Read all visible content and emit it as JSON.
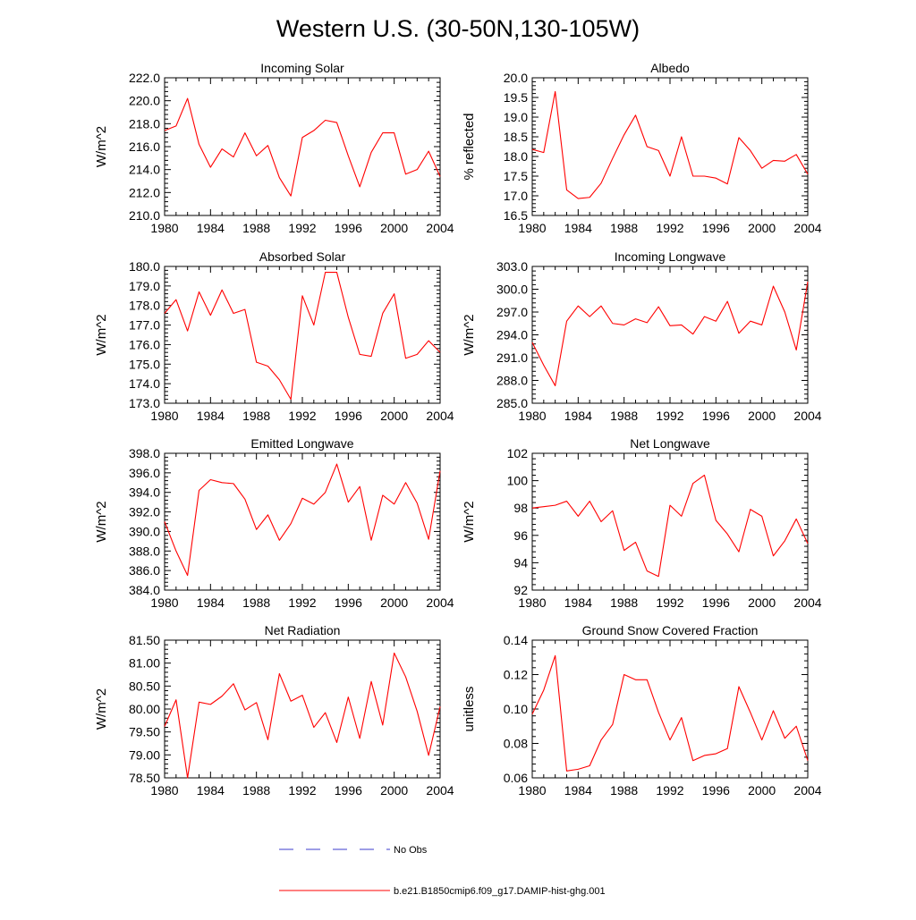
{
  "figure": {
    "title": "Western U.S. (30-50N,130-105W)"
  },
  "legend": [
    {
      "label": "No Obs",
      "color": "#3b3bcc",
      "dash": "dashed"
    },
    {
      "label": "b.e21.B1850cmip6.f09_g17.DAMIP-hist-ghg.001",
      "color": "#ff0000",
      "dash": "solid"
    }
  ],
  "chart_data": [
    {
      "type": "line",
      "title": "Incoming Solar",
      "ylabel": "W/m^2",
      "xlim": [
        1980,
        2004
      ],
      "ylim": [
        210.0,
        222.0
      ],
      "xticks": [
        1980,
        1984,
        1988,
        1992,
        1996,
        2000,
        2004
      ],
      "yticks": [
        210.0,
        212.0,
        214.0,
        216.0,
        218.0,
        220.0,
        222.0
      ],
      "ydecimals": 1,
      "x": [
        1980,
        1981,
        1982,
        1983,
        1984,
        1985,
        1986,
        1987,
        1988,
        1989,
        1990,
        1991,
        1992,
        1993,
        1994,
        1995,
        1996,
        1997,
        1998,
        1999,
        2000,
        2001,
        2002,
        2003,
        2004
      ],
      "series": [
        {
          "name": "b.e21.B1850cmip6.f09_g17.DAMIP-hist-ghg.001",
          "color": "#ff0000",
          "values": [
            217.4,
            217.8,
            220.2,
            216.2,
            214.2,
            215.8,
            215.1,
            217.2,
            215.2,
            216.1,
            213.3,
            211.7,
            216.8,
            217.4,
            218.3,
            218.1,
            215.2,
            212.5,
            215.5,
            217.2,
            217.2,
            213.6,
            214.0,
            215.6,
            213.4
          ]
        }
      ]
    },
    {
      "type": "line",
      "title": "Albedo",
      "ylabel": "% reflected",
      "xlim": [
        1980,
        2004
      ],
      "ylim": [
        16.5,
        20.0
      ],
      "xticks": [
        1980,
        1984,
        1988,
        1992,
        1996,
        2000,
        2004
      ],
      "yticks": [
        16.5,
        17.0,
        17.5,
        18.0,
        18.5,
        19.0,
        19.5,
        20.0
      ],
      "ydecimals": 1,
      "x": [
        1980,
        1981,
        1982,
        1983,
        1984,
        1985,
        1986,
        1987,
        1988,
        1989,
        1990,
        1991,
        1992,
        1993,
        1994,
        1995,
        1996,
        1997,
        1998,
        1999,
        2000,
        2001,
        2002,
        2003,
        2004
      ],
      "series": [
        {
          "name": "b.e21.B1850cmip6.f09_g17.DAMIP-hist-ghg.001",
          "color": "#ff0000",
          "values": [
            18.18,
            18.1,
            19.65,
            17.15,
            16.93,
            16.96,
            17.32,
            17.95,
            18.55,
            19.05,
            18.25,
            18.15,
            17.5,
            18.5,
            17.5,
            17.5,
            17.45,
            17.3,
            18.48,
            18.15,
            17.7,
            17.9,
            17.88,
            18.05,
            17.55
          ]
        }
      ]
    },
    {
      "type": "line",
      "title": "Absorbed Solar",
      "ylabel": "W/m^2",
      "xlim": [
        1980,
        2004
      ],
      "ylim": [
        173.0,
        180.0
      ],
      "xticks": [
        1980,
        1984,
        1988,
        1992,
        1996,
        2000,
        2004
      ],
      "yticks": [
        173.0,
        174.0,
        175.0,
        176.0,
        177.0,
        178.0,
        179.0,
        180.0
      ],
      "ydecimals": 1,
      "x": [
        1980,
        1981,
        1982,
        1983,
        1984,
        1985,
        1986,
        1987,
        1988,
        1989,
        1990,
        1991,
        1992,
        1993,
        1994,
        1995,
        1996,
        1997,
        1998,
        1999,
        2000,
        2001,
        2002,
        2003,
        2004
      ],
      "series": [
        {
          "name": "b.e21.B1850cmip6.f09_g17.DAMIP-hist-ghg.001",
          "color": "#ff0000",
          "values": [
            177.6,
            178.3,
            176.7,
            178.7,
            177.5,
            178.8,
            177.6,
            177.8,
            175.1,
            174.9,
            174.2,
            173.2,
            178.5,
            177.0,
            179.7,
            179.7,
            177.4,
            175.5,
            175.4,
            177.6,
            178.6,
            175.3,
            175.5,
            176.2,
            175.6
          ]
        }
      ]
    },
    {
      "type": "line",
      "title": "Incoming Longwave",
      "ylabel": "W/m^2",
      "xlim": [
        1980,
        2004
      ],
      "ylim": [
        285.0,
        303.0
      ],
      "xticks": [
        1980,
        1984,
        1988,
        1992,
        1996,
        2000,
        2004
      ],
      "yticks": [
        285.0,
        288.0,
        291.0,
        294.0,
        297.0,
        300.0,
        303.0
      ],
      "ydecimals": 1,
      "x": [
        1980,
        1981,
        1982,
        1983,
        1984,
        1985,
        1986,
        1987,
        1988,
        1989,
        1990,
        1991,
        1992,
        1993,
        1994,
        1995,
        1996,
        1997,
        1998,
        1999,
        2000,
        2001,
        2002,
        2003,
        2004
      ],
      "series": [
        {
          "name": "b.e21.B1850cmip6.f09_g17.DAMIP-hist-ghg.001",
          "color": "#ff0000",
          "values": [
            293.0,
            290.0,
            287.3,
            295.8,
            297.8,
            296.4,
            297.8,
            295.5,
            295.3,
            296.1,
            295.6,
            297.7,
            295.2,
            295.3,
            294.1,
            296.4,
            295.8,
            298.4,
            294.2,
            295.8,
            295.3,
            300.4,
            297.0,
            292.0,
            301.0
          ]
        }
      ]
    },
    {
      "type": "line",
      "title": "Emitted Longwave",
      "ylabel": "W/m^2",
      "xlim": [
        1980,
        2004
      ],
      "ylim": [
        384.0,
        398.0
      ],
      "xticks": [
        1980,
        1984,
        1988,
        1992,
        1996,
        2000,
        2004
      ],
      "yticks": [
        384.0,
        386.0,
        388.0,
        390.0,
        392.0,
        394.0,
        396.0,
        398.0
      ],
      "ydecimals": 1,
      "x": [
        1980,
        1981,
        1982,
        1983,
        1984,
        1985,
        1986,
        1987,
        1988,
        1989,
        1990,
        1991,
        1992,
        1993,
        1994,
        1995,
        1996,
        1997,
        1998,
        1999,
        2000,
        2001,
        2002,
        2003,
        2004
      ],
      "series": [
        {
          "name": "b.e21.B1850cmip6.f09_g17.DAMIP-hist-ghg.001",
          "color": "#ff0000",
          "values": [
            391.0,
            388.0,
            385.5,
            394.2,
            395.3,
            395.0,
            394.9,
            393.3,
            390.2,
            391.7,
            389.1,
            390.8,
            393.4,
            392.8,
            394.0,
            396.9,
            393.0,
            394.6,
            389.1,
            393.7,
            392.8,
            395.0,
            392.9,
            389.2,
            396.2
          ]
        }
      ]
    },
    {
      "type": "line",
      "title": "Net Longwave",
      "ylabel": "W/m^2",
      "xlim": [
        1980,
        2004
      ],
      "ylim": [
        92,
        102
      ],
      "xticks": [
        1980,
        1984,
        1988,
        1992,
        1996,
        2000,
        2004
      ],
      "yticks": [
        92,
        94,
        96,
        98,
        100,
        102
      ],
      "ydecimals": 0,
      "x": [
        1980,
        1981,
        1982,
        1983,
        1984,
        1985,
        1986,
        1987,
        1988,
        1989,
        1990,
        1991,
        1992,
        1993,
        1994,
        1995,
        1996,
        1997,
        1998,
        1999,
        2000,
        2001,
        2002,
        2003,
        2004
      ],
      "series": [
        {
          "name": "b.e21.B1850cmip6.f09_g17.DAMIP-hist-ghg.001",
          "color": "#ff0000",
          "values": [
            98.0,
            98.1,
            98.2,
            98.5,
            97.4,
            98.5,
            97.0,
            97.8,
            94.9,
            95.5,
            93.4,
            93.0,
            98.2,
            97.4,
            99.8,
            100.4,
            97.1,
            96.1,
            94.8,
            97.9,
            97.4,
            94.5,
            95.6,
            97.2,
            95.4
          ]
        }
      ]
    },
    {
      "type": "line",
      "title": "Net Radiation",
      "ylabel": "W/m^2",
      "xlim": [
        1980,
        2004
      ],
      "ylim": [
        78.5,
        81.5
      ],
      "xticks": [
        1980,
        1984,
        1988,
        1992,
        1996,
        2000,
        2004
      ],
      "yticks": [
        78.5,
        79.0,
        79.5,
        80.0,
        80.5,
        81.0,
        81.5
      ],
      "ydecimals": 2,
      "x": [
        1980,
        1981,
        1982,
        1983,
        1984,
        1985,
        1986,
        1987,
        1988,
        1989,
        1990,
        1991,
        1992,
        1993,
        1994,
        1995,
        1996,
        1997,
        1998,
        1999,
        2000,
        2001,
        2002,
        2003,
        2004
      ],
      "series": [
        {
          "name": "b.e21.B1850cmip6.f09_g17.DAMIP-hist-ghg.001",
          "color": "#ff0000",
          "values": [
            79.62,
            80.2,
            78.5,
            80.15,
            80.1,
            80.28,
            80.55,
            79.98,
            80.14,
            79.33,
            80.77,
            80.17,
            80.3,
            79.6,
            79.92,
            79.27,
            80.26,
            79.36,
            80.6,
            79.65,
            81.22,
            80.7,
            79.95,
            78.99,
            80.05
          ]
        }
      ]
    },
    {
      "type": "line",
      "title": "Ground Snow Covered Fraction",
      "ylabel": "unitless",
      "xlim": [
        1980,
        2004
      ],
      "ylim": [
        0.06,
        0.14
      ],
      "xticks": [
        1980,
        1984,
        1988,
        1992,
        1996,
        2000,
        2004
      ],
      "yticks": [
        0.06,
        0.08,
        0.1,
        0.12,
        0.14
      ],
      "ydecimals": 2,
      "x": [
        1980,
        1981,
        1982,
        1983,
        1984,
        1985,
        1986,
        1987,
        1988,
        1989,
        1990,
        1991,
        1992,
        1993,
        1994,
        1995,
        1996,
        1997,
        1998,
        1999,
        2000,
        2001,
        2002,
        2003,
        2004
      ],
      "series": [
        {
          "name": "b.e21.B1850cmip6.f09_g17.DAMIP-hist-ghg.001",
          "color": "#ff0000",
          "values": [
            0.097,
            0.111,
            0.131,
            0.064,
            0.065,
            0.067,
            0.082,
            0.091,
            0.12,
            0.117,
            0.117,
            0.098,
            0.082,
            0.095,
            0.07,
            0.073,
            0.074,
            0.077,
            0.113,
            0.098,
            0.082,
            0.099,
            0.083,
            0.09,
            0.07
          ]
        }
      ]
    }
  ]
}
